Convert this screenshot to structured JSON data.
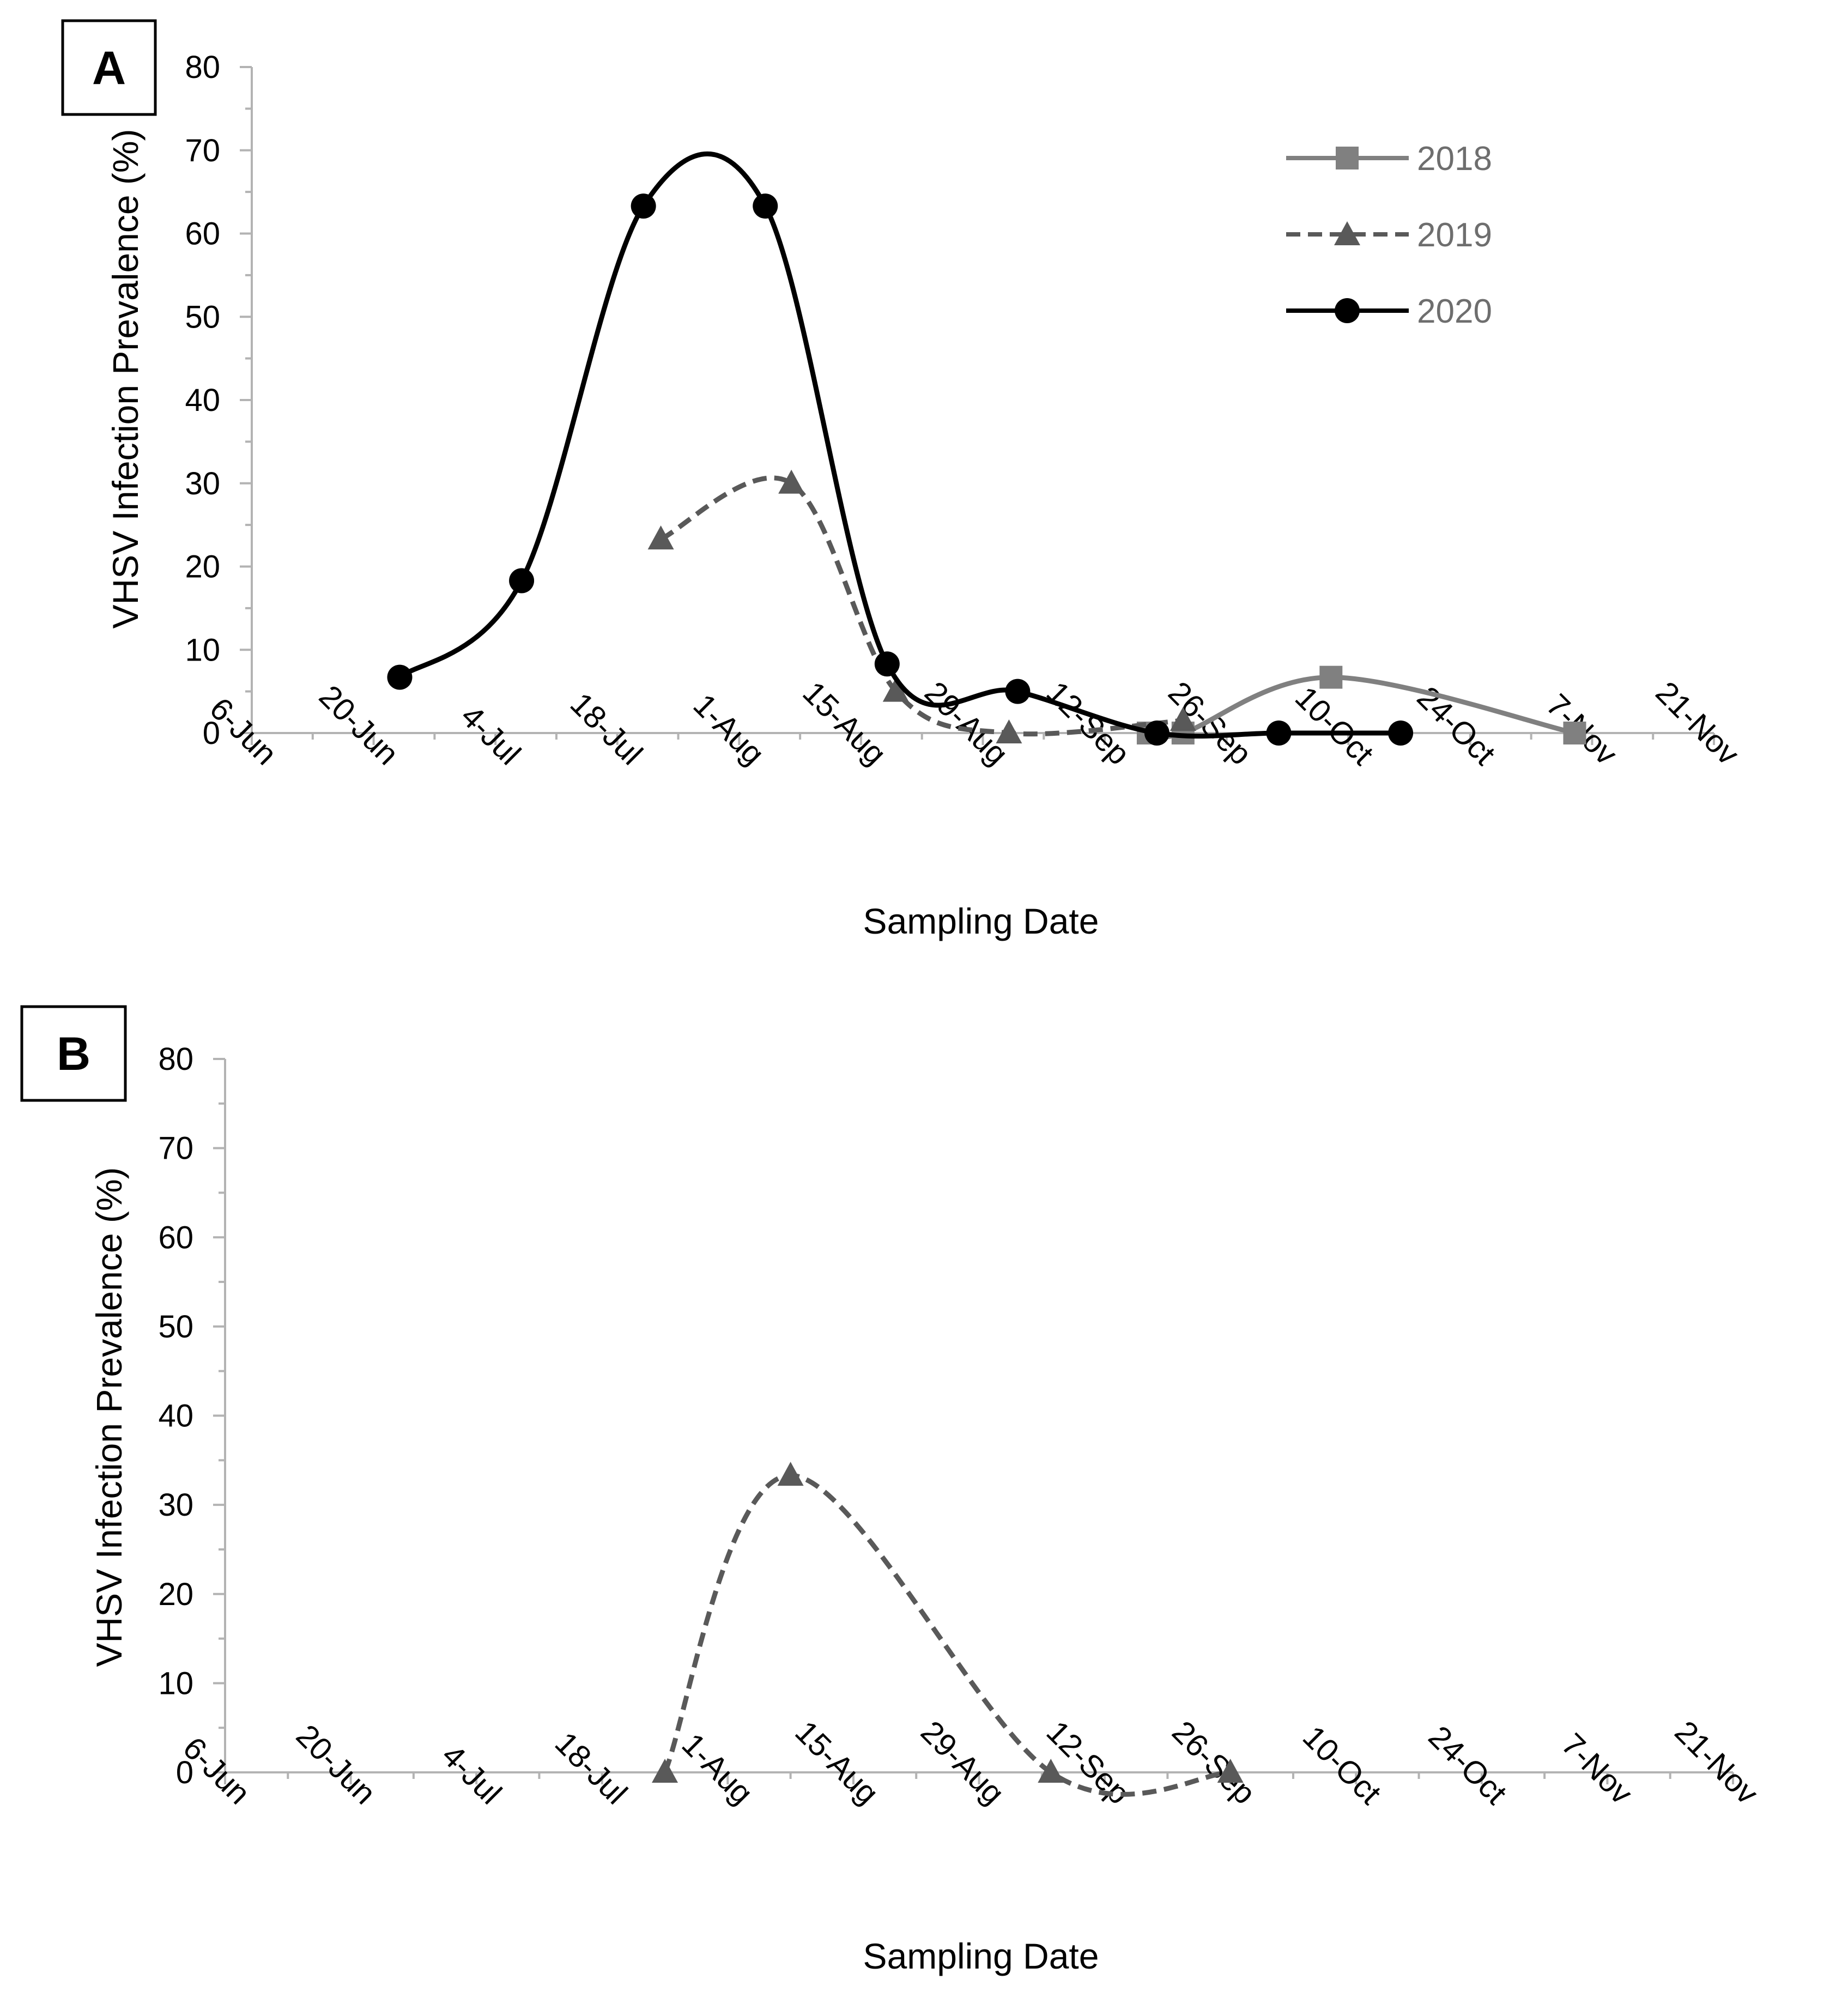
{
  "chart_data": [
    {
      "panel": "A",
      "type": "line",
      "xlabel": "Sampling Date",
      "ylabel": "VHSV Infection Prevalence (%)",
      "ylim": [
        0,
        80
      ],
      "yticks": [
        "0",
        "10",
        "20",
        "30",
        "40",
        "50",
        "60",
        "70",
        "80"
      ],
      "xlim": [
        0,
        168
      ],
      "xtick_labels": [
        "6-Jun",
        "20-Jun",
        "4-Jul",
        "18-Jul",
        "1-Aug",
        "15-Aug",
        "29-Aug",
        "12-Sep",
        "26-Sep",
        "10-Oct",
        "24-Oct",
        "7-Nov",
        "21-Nov"
      ],
      "legend_position": "top-right",
      "series": [
        {
          "name": "2018",
          "color": "#808080",
          "dash": "solid",
          "marker": "square",
          "x": [
            103,
            107,
            124,
            152
          ],
          "y": [
            0,
            0,
            6.7,
            0
          ]
        },
        {
          "name": "2019",
          "color": "#595959",
          "dash": "dashed",
          "marker": "triangle",
          "x": [
            47,
            62,
            74,
            87,
            107
          ],
          "y": [
            23.3,
            30,
            5,
            0,
            1.5
          ]
        },
        {
          "name": "2020",
          "color": "#000000",
          "dash": "solid",
          "marker": "circle",
          "x": [
            17,
            31,
            45,
            59,
            73,
            88,
            104,
            118,
            132
          ],
          "y": [
            6.7,
            18.3,
            63.3,
            63.3,
            8.3,
            5,
            0,
            0,
            0
          ]
        }
      ]
    },
    {
      "panel": "B",
      "type": "line",
      "xlabel": "Sampling Date",
      "ylabel": "VHSV Infection Prevalence (%)",
      "ylim": [
        0,
        80
      ],
      "yticks": [
        "0",
        "10",
        "20",
        "30",
        "40",
        "50",
        "60",
        "70",
        "80"
      ],
      "xlim": [
        0,
        168
      ],
      "xtick_labels": [
        "6-Jun",
        "20-Jun",
        "4-Jul",
        "18-Jul",
        "1-Aug",
        "15-Aug",
        "29-Aug",
        "12-Sep",
        "26-Sep",
        "10-Oct",
        "24-Oct",
        "7-Nov",
        "21-Nov"
      ],
      "series": [
        {
          "name": "2019",
          "color": "#595959",
          "dash": "dashed",
          "marker": "triangle",
          "x": [
            49,
            63,
            92,
            112
          ],
          "y": [
            0,
            33.3,
            0,
            0
          ]
        }
      ]
    }
  ]
}
